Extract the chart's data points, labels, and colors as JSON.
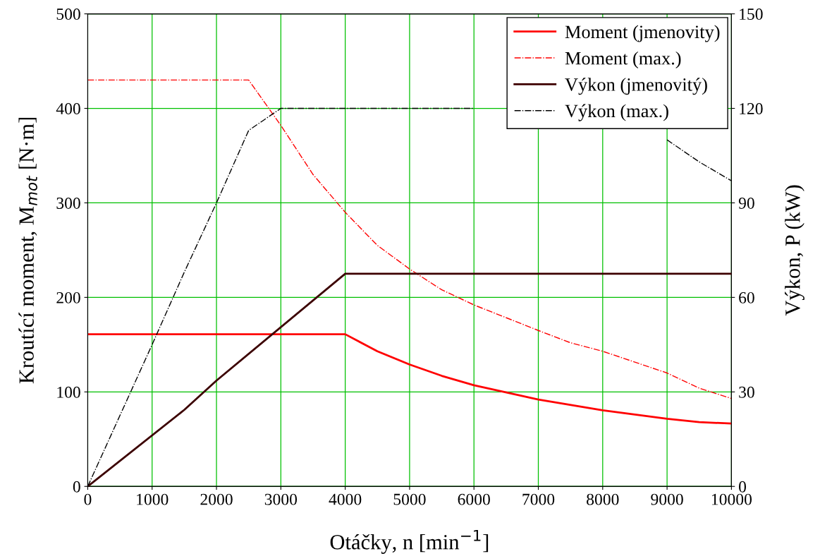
{
  "chart_data": {
    "type": "line",
    "xlabel": "Otáčky, n [min$^{−1}$]",
    "ylabel": "Kroutící moment, M$_{mot}$ [N·m]",
    "y2label": "Výkon, P (kW)",
    "xlim": [
      0,
      10000
    ],
    "xticks": [
      0,
      1000,
      2000,
      3000,
      4000,
      5000,
      6000,
      7000,
      8000,
      9000,
      10000
    ],
    "ylim": [
      0,
      500
    ],
    "yticks": [
      0,
      100,
      200,
      300,
      400,
      500
    ],
    "y2lim": [
      0,
      150
    ],
    "y2ticks": [
      0,
      30,
      60,
      90,
      120,
      150
    ],
    "grid": true,
    "legend": "top right",
    "series": [
      {
        "name": "Moment (jmenovity)",
        "color": "#ff0000",
        "line_style": "solid",
        "x": [
          0,
          4000,
          4500,
          5000,
          5500,
          6000,
          7000,
          8000,
          9000,
          9500,
          10000
        ],
        "values": [
          161,
          161,
          143,
          129,
          117,
          107,
          92,
          80.5,
          71.6,
          68,
          66.5
        ]
      },
      {
        "name": "Moment (max.)",
        "color": "#ff0000",
        "line_style": "dashdot",
        "x": [
          0,
          2500,
          3000,
          3500,
          4000,
          4500,
          5000,
          5500,
          6000,
          7000,
          7500,
          8000,
          9000,
          9500,
          10000
        ],
        "values": [
          430,
          430,
          382,
          330,
          290,
          255,
          230,
          208,
          192,
          165,
          152,
          143,
          120,
          104,
          93
        ]
      },
      {
        "name": "Výkon (jmenovitý)",
        "color": "#3c0000",
        "line_style": "solid",
        "axis": "y2",
        "x": [
          0,
          1500,
          2000,
          4000,
          10000
        ],
        "values": [
          0,
          24.3,
          33.6,
          67.5,
          67.5
        ]
      },
      {
        "name": "Výkon (max.)",
        "color": "#000000",
        "line_style": "dashdot",
        "axis": "y2",
        "x": [
          0,
          1000,
          1500,
          2000,
          2500,
          3000,
          6000,
          8500,
          9000,
          9500,
          10000
        ],
        "values": [
          0,
          45,
          68,
          90,
          113,
          120,
          120,
          null,
          110,
          103,
          97
        ]
      }
    ]
  }
}
